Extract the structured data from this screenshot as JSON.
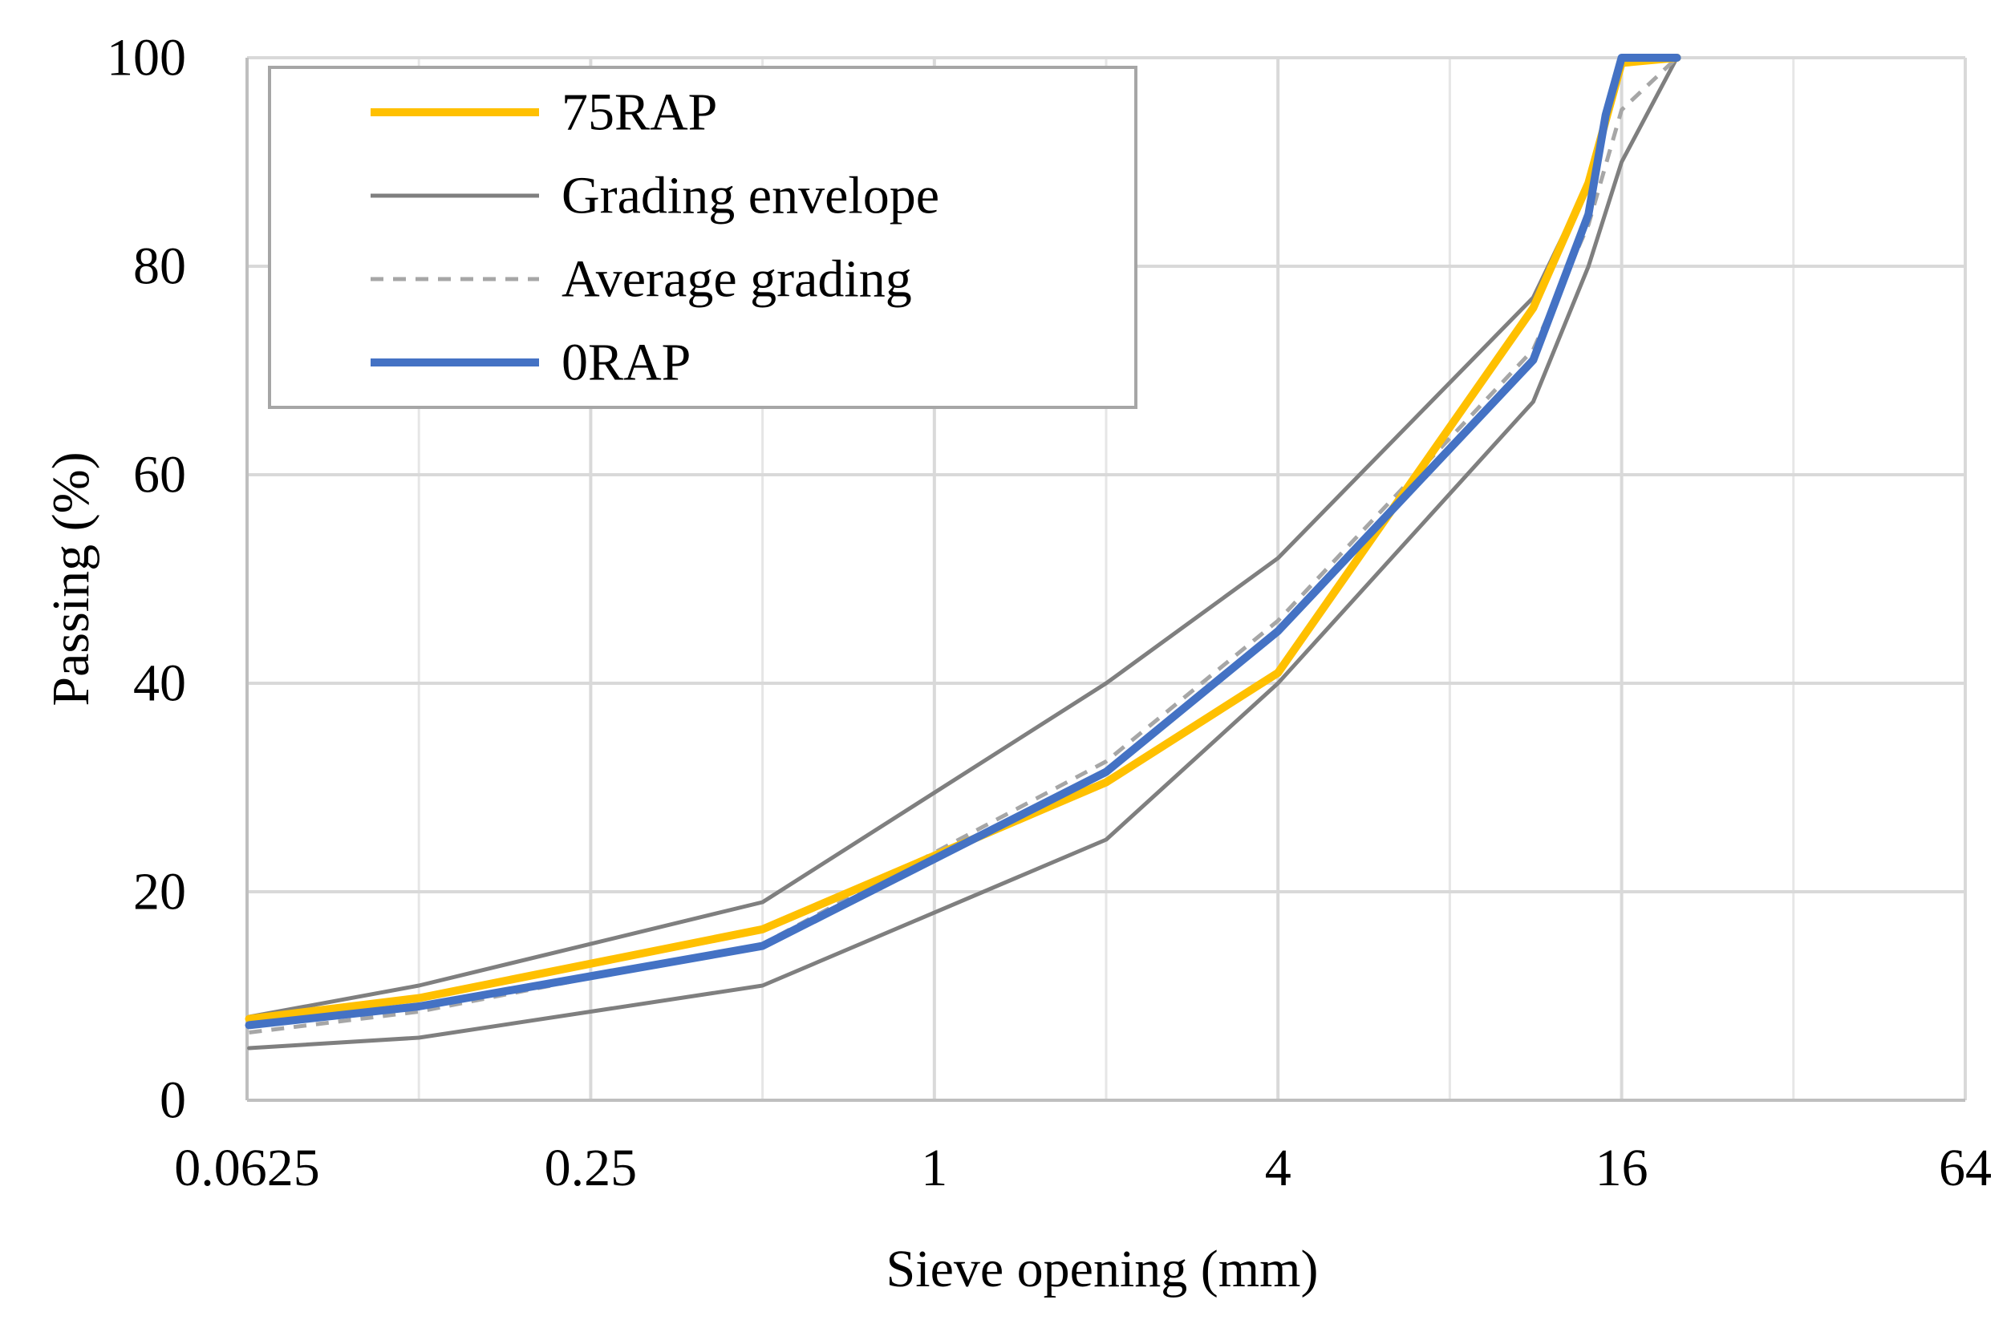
{
  "chart_data": {
    "type": "line",
    "title": "",
    "xlabel": "Sieve opening (mm)",
    "ylabel": "Passing (%)",
    "x_scale": "log2",
    "xlim": [
      0.0625,
      64
    ],
    "ylim": [
      0,
      100
    ],
    "x_major_ticks": [
      0.0625,
      0.25,
      1,
      4,
      16,
      64
    ],
    "x_tick_labels": [
      "0.0625",
      "0.25",
      "1",
      "4",
      "16",
      "64"
    ],
    "x_minor_gridlines": [
      0.125,
      0.5,
      2,
      8,
      32
    ],
    "y_ticks": [
      0,
      20,
      40,
      60,
      80,
      100
    ],
    "y_tick_labels": [
      "0",
      "20",
      "40",
      "60",
      "80",
      "100"
    ],
    "grid": true,
    "legend_position": "top-left",
    "series": [
      {
        "name": "75RAP",
        "color": "#FFC000",
        "style": "solid-thick",
        "x": [
          0.063,
          0.125,
          0.5,
          2,
          4,
          11.2,
          14,
          16,
          20
        ],
        "y": [
          7.8,
          9.8,
          16.4,
          30.5,
          41,
          76,
          88,
          99.5,
          100
        ]
      },
      {
        "name": "Grading envelope",
        "color": "#7F7F7F",
        "style": "solid",
        "x": [
          0.063,
          0.125,
          0.5,
          2,
          4,
          11.2,
          14,
          16,
          20
        ],
        "y": [
          8,
          11,
          19,
          40,
          52,
          77,
          88,
          100,
          100
        ]
      },
      {
        "name": "Grading envelope (lower)",
        "legend": false,
        "color": "#7F7F7F",
        "style": "solid",
        "x": [
          0.063,
          0.125,
          0.5,
          2,
          4,
          11.2,
          14,
          16,
          20
        ],
        "y": [
          5,
          6,
          11,
          25,
          40,
          67,
          80,
          90,
          100
        ]
      },
      {
        "name": "Average grading",
        "color": "#A6A6A6",
        "style": "dashed",
        "x": [
          0.063,
          0.125,
          0.5,
          2,
          4,
          11.2,
          14,
          16,
          20
        ],
        "y": [
          6.5,
          8.5,
          15,
          32.5,
          46,
          72,
          84,
          95,
          100
        ]
      },
      {
        "name": "0RAP",
        "color": "#4472C4",
        "style": "solid-thick",
        "x": [
          0.063,
          0.125,
          0.5,
          2,
          4,
          11.2,
          14,
          15,
          16,
          20
        ],
        "y": [
          7.2,
          9,
          14.8,
          31.5,
          45,
          71,
          85,
          94.5,
          100,
          100
        ]
      }
    ]
  }
}
